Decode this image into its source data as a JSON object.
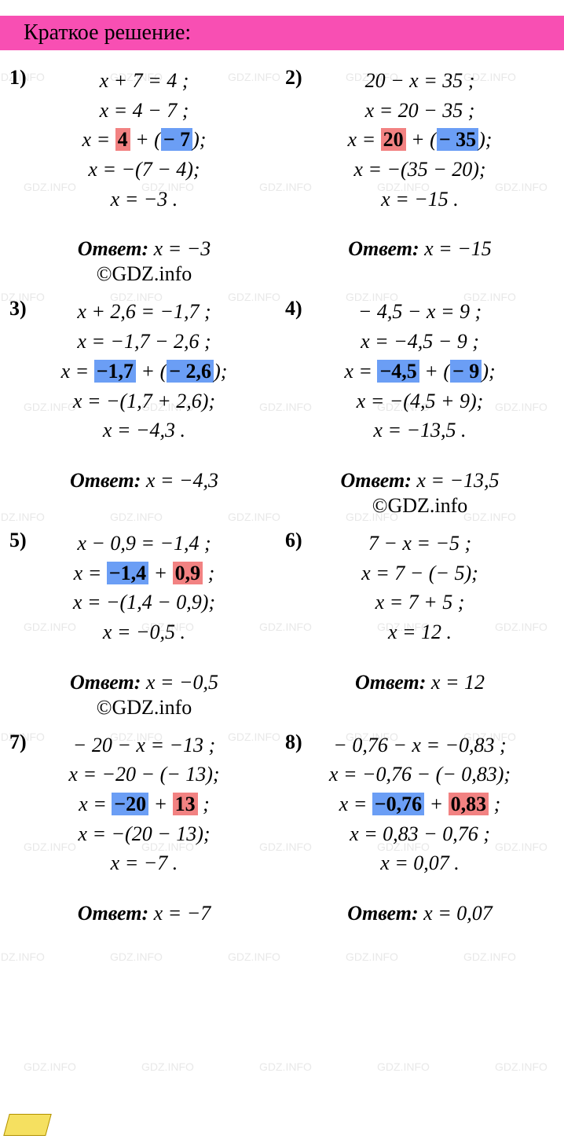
{
  "header": "Краткое решение:",
  "colors": {
    "header_bg": "#f84fb3",
    "hl_red": "#f28282",
    "hl_blue": "#6b9ef5",
    "text": "#000000",
    "background": "#ffffff",
    "watermark": "#e8e8e8"
  },
  "typography": {
    "header_fontsize": 28,
    "body_fontsize": 26,
    "font_family": "Times New Roman"
  },
  "answer_label": "Ответ:",
  "credit_text": "©GDZ.info",
  "watermark_text": "GDZ.INFO",
  "problems": [
    {
      "num": "1)",
      "lines": [
        {
          "t": "plain",
          "text": "x + 7 = 4 ;"
        },
        {
          "t": "plain",
          "text": "x = 4 − 7 ;"
        },
        {
          "t": "hl",
          "prefix": "x = ",
          "a": "4",
          "a_c": "red",
          "mid": " + (",
          "b": "− 7",
          "b_c": "blue",
          "suffix": ");"
        },
        {
          "t": "plain",
          "text": "x = −(7 − 4);"
        },
        {
          "t": "plain",
          "text": "x = −3 ."
        }
      ],
      "answer": "x = −3",
      "credit": true
    },
    {
      "num": "2)",
      "lines": [
        {
          "t": "plain",
          "text": "20 − x = 35 ;"
        },
        {
          "t": "plain",
          "text": "x = 20 − 35 ;"
        },
        {
          "t": "hl",
          "prefix": "x = ",
          "a": "20",
          "a_c": "red",
          "mid": " + (",
          "b": "− 35",
          "b_c": "blue",
          "suffix": ");"
        },
        {
          "t": "plain",
          "text": "x = −(35 − 20);"
        },
        {
          "t": "plain",
          "text": "x = −15 ."
        }
      ],
      "answer": "x = −15",
      "credit": false
    },
    {
      "num": "3)",
      "lines": [
        {
          "t": "plain",
          "text": "x + 2,6 = −1,7 ;"
        },
        {
          "t": "plain",
          "text": "x = −1,7 − 2,6 ;"
        },
        {
          "t": "hl",
          "prefix": "x = ",
          "a": "−1,7",
          "a_c": "blue",
          "mid": " + (",
          "b": "− 2,6",
          "b_c": "blue",
          "suffix": ");"
        },
        {
          "t": "plain",
          "text": "x = −(1,7 + 2,6);"
        },
        {
          "t": "plain",
          "text": "x = −4,3 ."
        }
      ],
      "answer": "x = −4,3",
      "credit": false
    },
    {
      "num": "4)",
      "lines": [
        {
          "t": "plain",
          "text": "− 4,5 − x = 9 ;"
        },
        {
          "t": "plain",
          "text": "x = −4,5 − 9 ;"
        },
        {
          "t": "hl",
          "prefix": "x = ",
          "a": "−4,5",
          "a_c": "blue",
          "mid": " + (",
          "b": "− 9",
          "b_c": "blue",
          "suffix": ");"
        },
        {
          "t": "plain",
          "text": "x = −(4,5 + 9);"
        },
        {
          "t": "plain",
          "text": "x = −13,5 ."
        }
      ],
      "answer": "x = −13,5",
      "credit": true
    },
    {
      "num": "5)",
      "lines": [
        {
          "t": "plain",
          "text": "x − 0,9 = −1,4 ;"
        },
        {
          "t": "hl",
          "prefix": "x = ",
          "a": "−1,4",
          "a_c": "blue",
          "mid": " + ",
          "b": "0,9",
          "b_c": "red",
          "suffix": " ;"
        },
        {
          "t": "plain",
          "text": "x = −(1,4 − 0,9);"
        },
        {
          "t": "plain",
          "text": "x = −0,5 ."
        }
      ],
      "answer": "x = −0,5",
      "credit": true
    },
    {
      "num": "6)",
      "lines": [
        {
          "t": "plain",
          "text": "7 − x = −5 ;"
        },
        {
          "t": "plain",
          "text": "x = 7 − (− 5);"
        },
        {
          "t": "plain",
          "text": "x = 7 + 5 ;"
        },
        {
          "t": "plain",
          "text": "x = 12 ."
        }
      ],
      "answer": "x = 12",
      "credit": false
    },
    {
      "num": "7)",
      "lines": [
        {
          "t": "plain",
          "text": "− 20 − x = −13 ;"
        },
        {
          "t": "plain",
          "text": "x = −20 − (− 13);"
        },
        {
          "t": "hl",
          "prefix": "x = ",
          "a": "−20",
          "a_c": "blue",
          "mid": " + ",
          "b": "13",
          "b_c": "red",
          "suffix": " ;"
        },
        {
          "t": "plain",
          "text": "x = −(20 − 13);"
        },
        {
          "t": "plain",
          "text": "x = −7 ."
        }
      ],
      "answer": "x = −7",
      "credit": false
    },
    {
      "num": "8)",
      "lines": [
        {
          "t": "plain",
          "text": "− 0,76 − x = −0,83 ;"
        },
        {
          "t": "plain",
          "text": "x = −0,76 − (− 0,83);"
        },
        {
          "t": "hl",
          "prefix": "x = ",
          "a": "−0,76",
          "a_c": "blue",
          "mid": " + ",
          "b": "0,83",
          "b_c": "red",
          "suffix": " ;"
        },
        {
          "t": "plain",
          "text": "x = 0,83 − 0,76 ;"
        },
        {
          "t": "plain",
          "text": "x = 0,07 ."
        }
      ],
      "answer": "x = 0,07",
      "credit": false
    }
  ]
}
